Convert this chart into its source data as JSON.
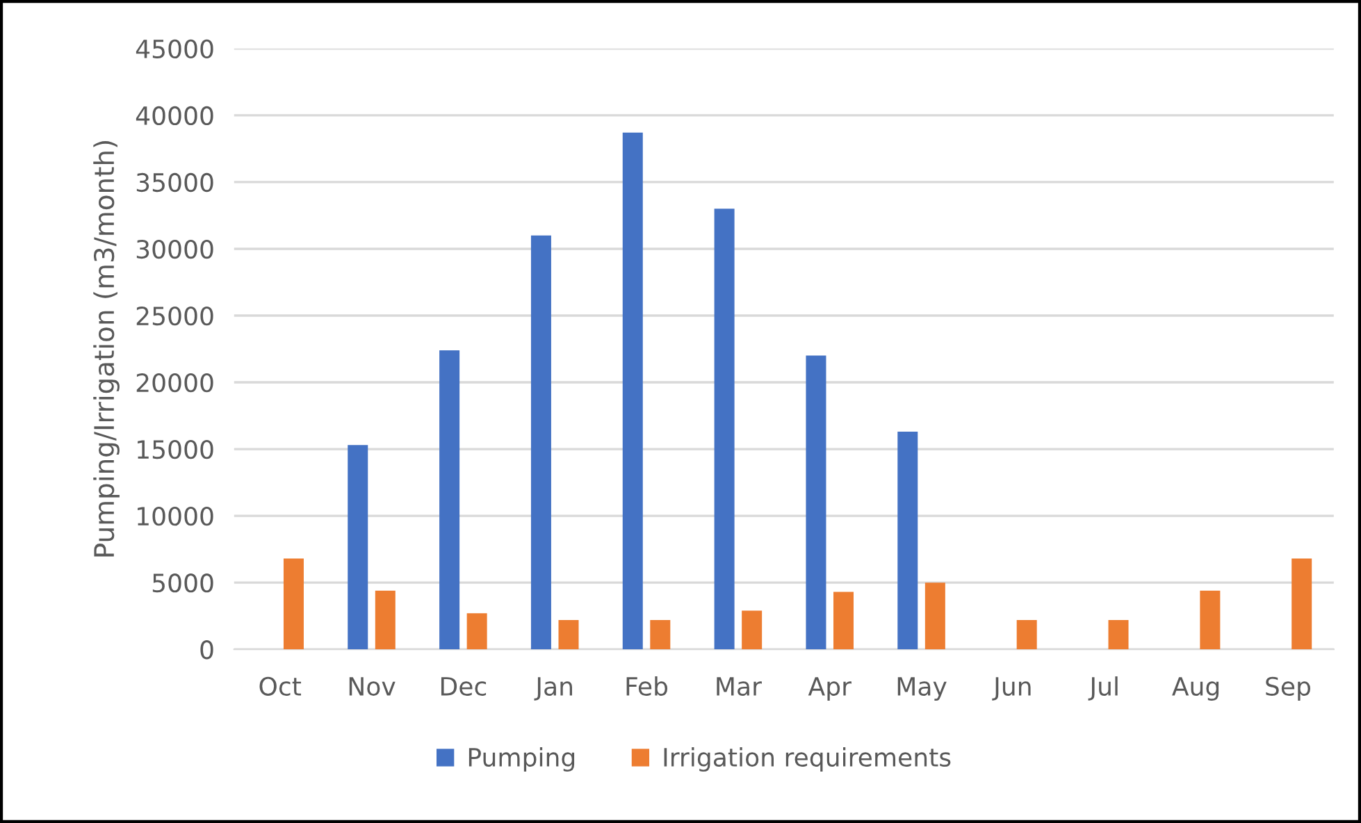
{
  "chart_data": {
    "type": "bar",
    "ylabel": "Pumping/Irrigation (m3/month)",
    "categories": [
      "Oct",
      "Nov",
      "Dec",
      "Jan",
      "Feb",
      "Mar",
      "Apr",
      "May",
      "Jun",
      "Jul",
      "Aug",
      "Sep"
    ],
    "series": [
      {
        "name": "Pumping",
        "color": "#4472c4",
        "values": [
          null,
          15300,
          22400,
          31000,
          38700,
          33000,
          22000,
          16300,
          null,
          null,
          null,
          null
        ]
      },
      {
        "name": "Irrigation requirements",
        "color": "#ed7d31",
        "values": [
          6800,
          4400,
          2700,
          2200,
          2200,
          2900,
          4300,
          5000,
          2200,
          2200,
          4400,
          6800
        ]
      }
    ],
    "ylim": [
      0,
      45000
    ],
    "yticks": [
      0,
      5000,
      10000,
      15000,
      20000,
      25000,
      30000,
      35000,
      40000,
      45000
    ],
    "grid": "y",
    "legend": "bottom"
  }
}
